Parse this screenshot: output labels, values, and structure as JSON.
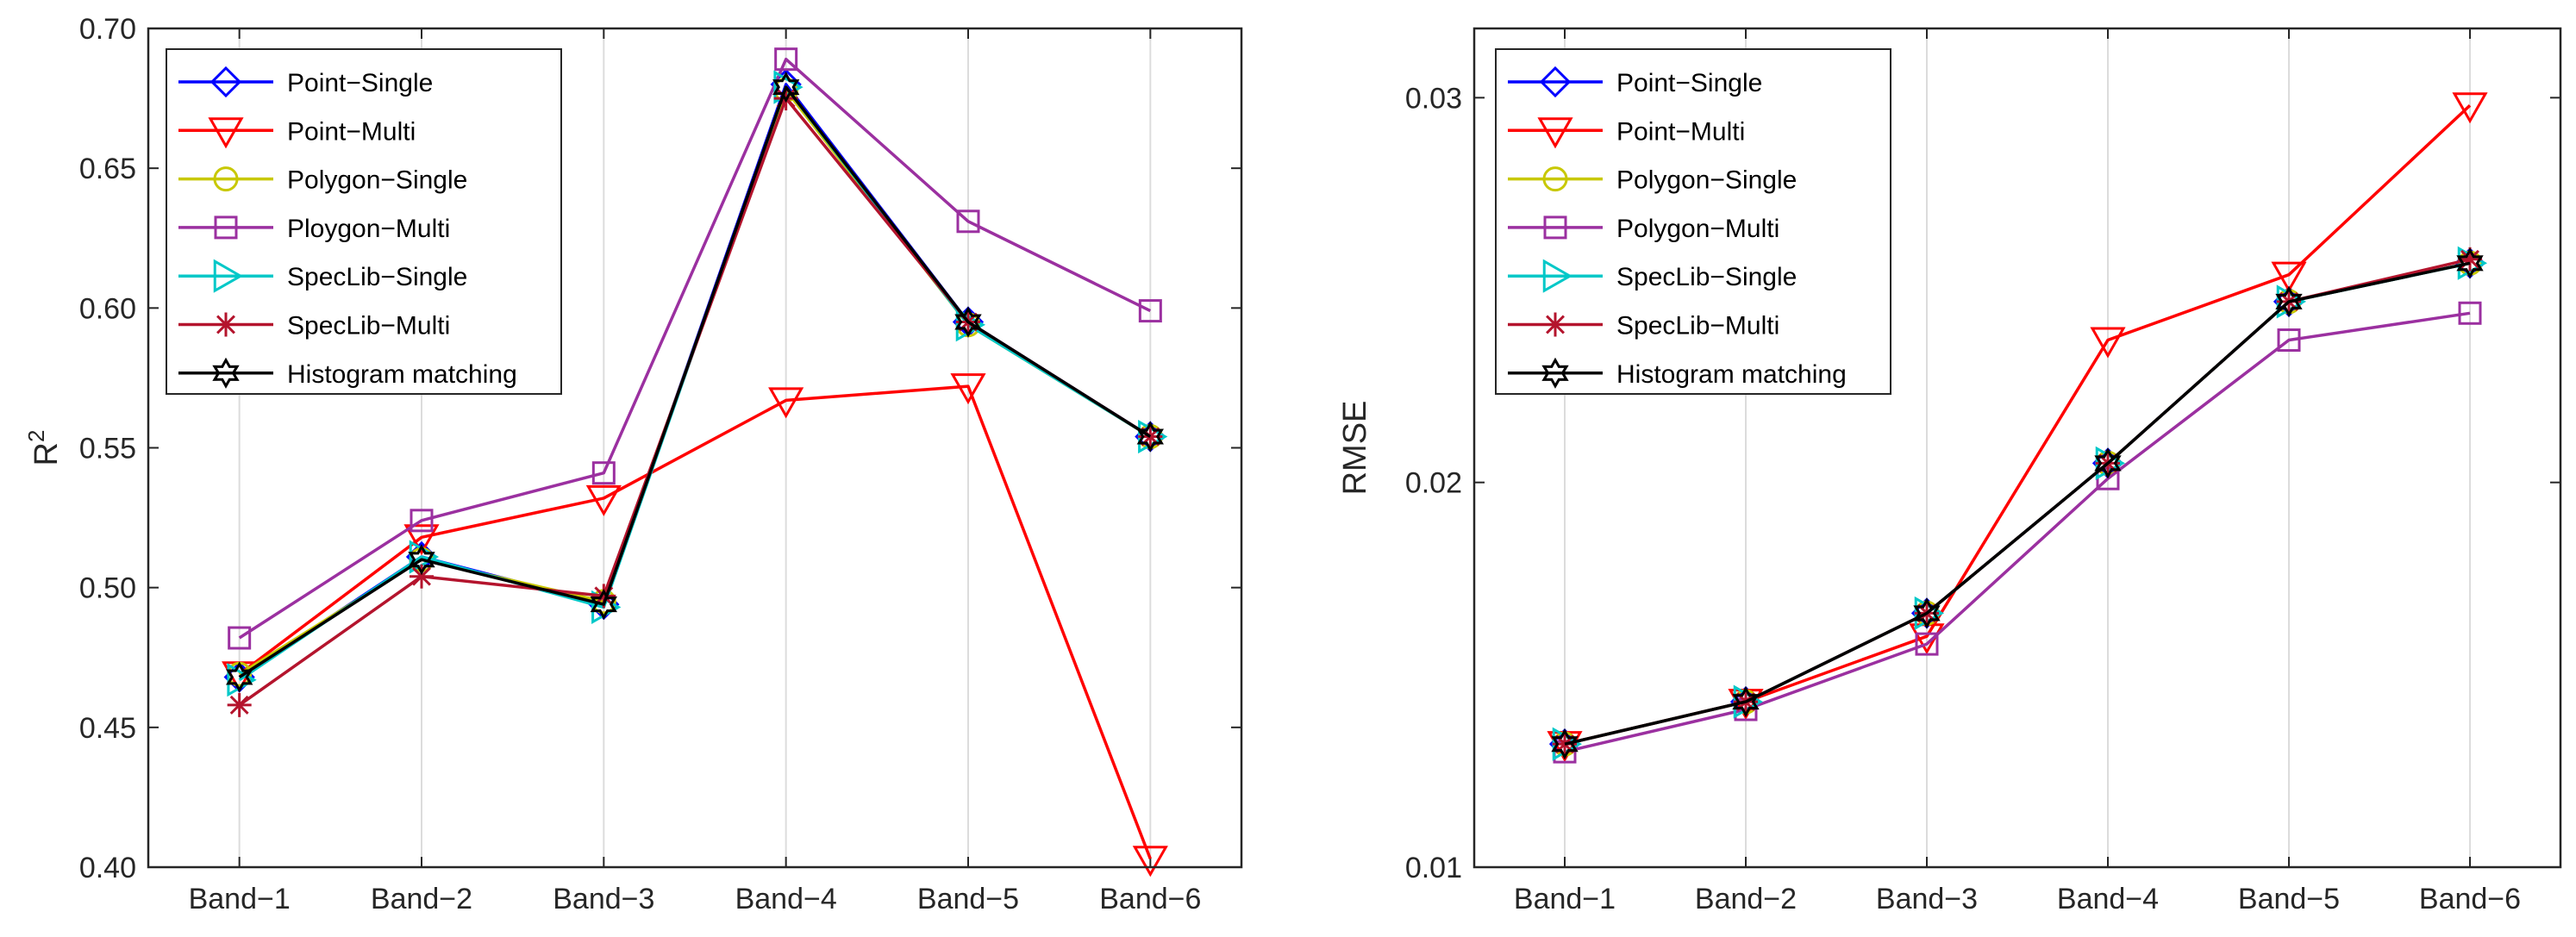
{
  "chart_data": [
    {
      "type": "line",
      "id": "r2",
      "categories": [
        "Band−1",
        "Band−2",
        "Band−3",
        "Band−4",
        "Band−5",
        "Band−6"
      ],
      "ylabel": "R",
      "ylabel_sup": "2",
      "xlabel": "",
      "ylim": [
        0.4,
        0.7
      ],
      "yticks": [
        0.4,
        0.45,
        0.5,
        0.55,
        0.6,
        0.65,
        0.7
      ],
      "ytick_labels": [
        "0.40",
        "0.45",
        "0.50",
        "0.55",
        "0.60",
        "0.65",
        "0.70"
      ],
      "grid": "x",
      "legend_position": "top-left",
      "series": [
        {
          "name": "Point−Single",
          "color": "#0000FF",
          "marker": "diamond",
          "values": [
            0.468,
            0.511,
            0.494,
            0.68,
            0.595,
            0.554
          ]
        },
        {
          "name": "Point−Multi",
          "color": "#FF0000",
          "marker": "triangle-down",
          "values": [
            0.469,
            0.518,
            0.532,
            0.567,
            0.572,
            0.403
          ]
        },
        {
          "name": "Polygon−Single",
          "color": "#C8C800",
          "marker": "circle",
          "values": [
            0.469,
            0.51,
            0.495,
            0.678,
            0.594,
            0.554
          ]
        },
        {
          "name": "Ploygon−Multi",
          "color": "#9B30A0",
          "marker": "square",
          "values": [
            0.482,
            0.524,
            0.541,
            0.689,
            0.631,
            0.599
          ]
        },
        {
          "name": "SpecLib−Single",
          "color": "#00C8C8",
          "marker": "triangle-right",
          "values": [
            0.467,
            0.511,
            0.493,
            0.679,
            0.594,
            0.554
          ]
        },
        {
          "name": "SpecLib−Multi",
          "color": "#B4142D",
          "marker": "asterisk",
          "values": [
            0.458,
            0.504,
            0.497,
            0.675,
            0.595,
            0.554
          ]
        },
        {
          "name": "Histogram matching",
          "color": "#000000",
          "marker": "hexagram",
          "values": [
            0.468,
            0.51,
            0.494,
            0.679,
            0.595,
            0.554
          ]
        }
      ]
    },
    {
      "type": "line",
      "id": "rmse",
      "categories": [
        "Band−1",
        "Band−2",
        "Band−3",
        "Band−4",
        "Band−5",
        "Band−6"
      ],
      "ylabel": "RMSE",
      "ylabel_sup": "",
      "xlabel": "",
      "ylim": [
        0.01,
        0.0318
      ],
      "yticks": [
        0.01,
        0.02,
        0.03
      ],
      "ytick_labels": [
        "0.01",
        "0.02",
        "0.03"
      ],
      "grid": "x",
      "legend_position": "top-left",
      "series": [
        {
          "name": "Point−Single",
          "color": "#0000FF",
          "marker": "diamond",
          "values": [
            0.0132,
            0.0143,
            0.0166,
            0.0205,
            0.0247,
            0.0257
          ]
        },
        {
          "name": "Point−Multi",
          "color": "#FF0000",
          "marker": "triangle-down",
          "values": [
            0.0132,
            0.0143,
            0.016,
            0.0237,
            0.0254,
            0.0298
          ]
        },
        {
          "name": "Polygon−Single",
          "color": "#C8C800",
          "marker": "circle",
          "values": [
            0.0132,
            0.0143,
            0.0166,
            0.0205,
            0.0247,
            0.0257
          ]
        },
        {
          "name": "Polygon−Multi",
          "color": "#9B30A0",
          "marker": "square",
          "values": [
            0.013,
            0.0141,
            0.0158,
            0.0201,
            0.0237,
            0.0244
          ]
        },
        {
          "name": "SpecLib−Single",
          "color": "#00C8C8",
          "marker": "triangle-right",
          "values": [
            0.0132,
            0.0143,
            0.0166,
            0.0205,
            0.0247,
            0.0257
          ]
        },
        {
          "name": "SpecLib−Multi",
          "color": "#B4142D",
          "marker": "asterisk",
          "values": [
            0.0132,
            0.0143,
            0.0166,
            0.0205,
            0.0247,
            0.0258
          ]
        },
        {
          "name": "Histogram matching",
          "color": "#000000",
          "marker": "hexagram",
          "values": [
            0.0132,
            0.0143,
            0.0166,
            0.0205,
            0.0247,
            0.0257
          ]
        }
      ]
    }
  ]
}
